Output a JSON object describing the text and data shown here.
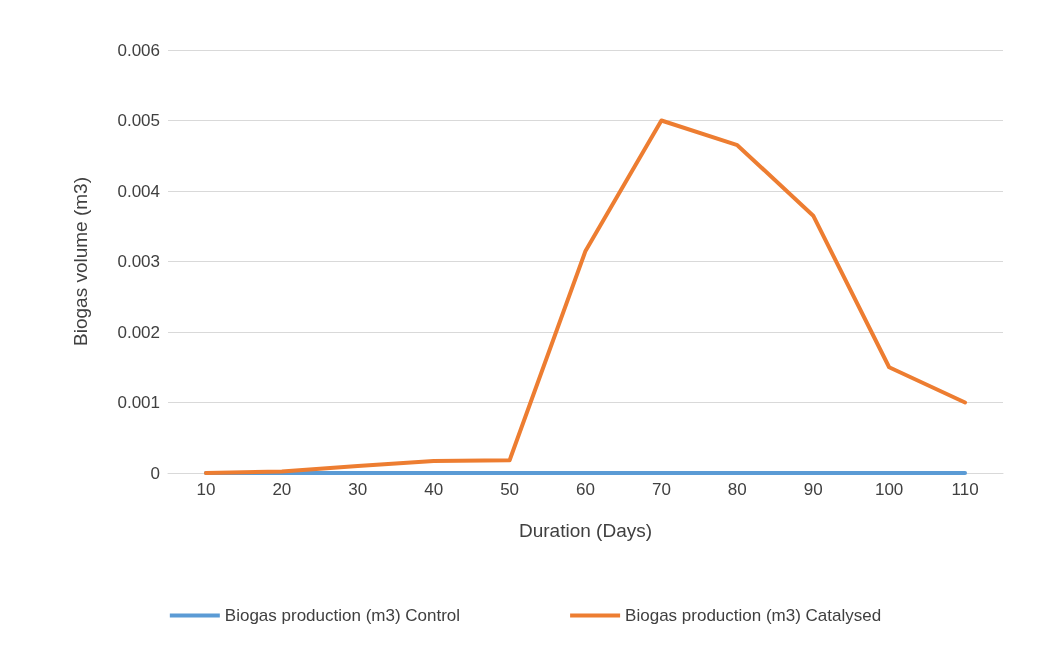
{
  "chart_data": {
    "type": "line",
    "xlabel": "Duration (Days)",
    "ylabel": "Biogas volume (m3)",
    "categories": [
      "10",
      "20",
      "30",
      "40",
      "50",
      "60",
      "70",
      "80",
      "90",
      "100",
      "110"
    ],
    "series": [
      {
        "name": "Biogas production (m3) Control",
        "color": "#5b9bd5",
        "values": [
          0,
          0,
          0,
          0,
          0,
          0,
          0,
          0,
          0,
          0,
          0
        ]
      },
      {
        "name": "Biogas production (m3) Catalysed",
        "color": "#ed7d31",
        "values": [
          0,
          2e-05,
          0.0001,
          0.00017,
          0.00018,
          0.00315,
          0.005,
          0.00465,
          0.00365,
          0.0015,
          0.001
        ]
      }
    ],
    "ylim": [
      0,
      0.006
    ],
    "yticks": [
      0,
      0.001,
      0.002,
      0.003,
      0.004,
      0.005,
      0.006
    ],
    "grid": "y",
    "legend": "bottom",
    "marker": "none",
    "line_style": "solid"
  }
}
